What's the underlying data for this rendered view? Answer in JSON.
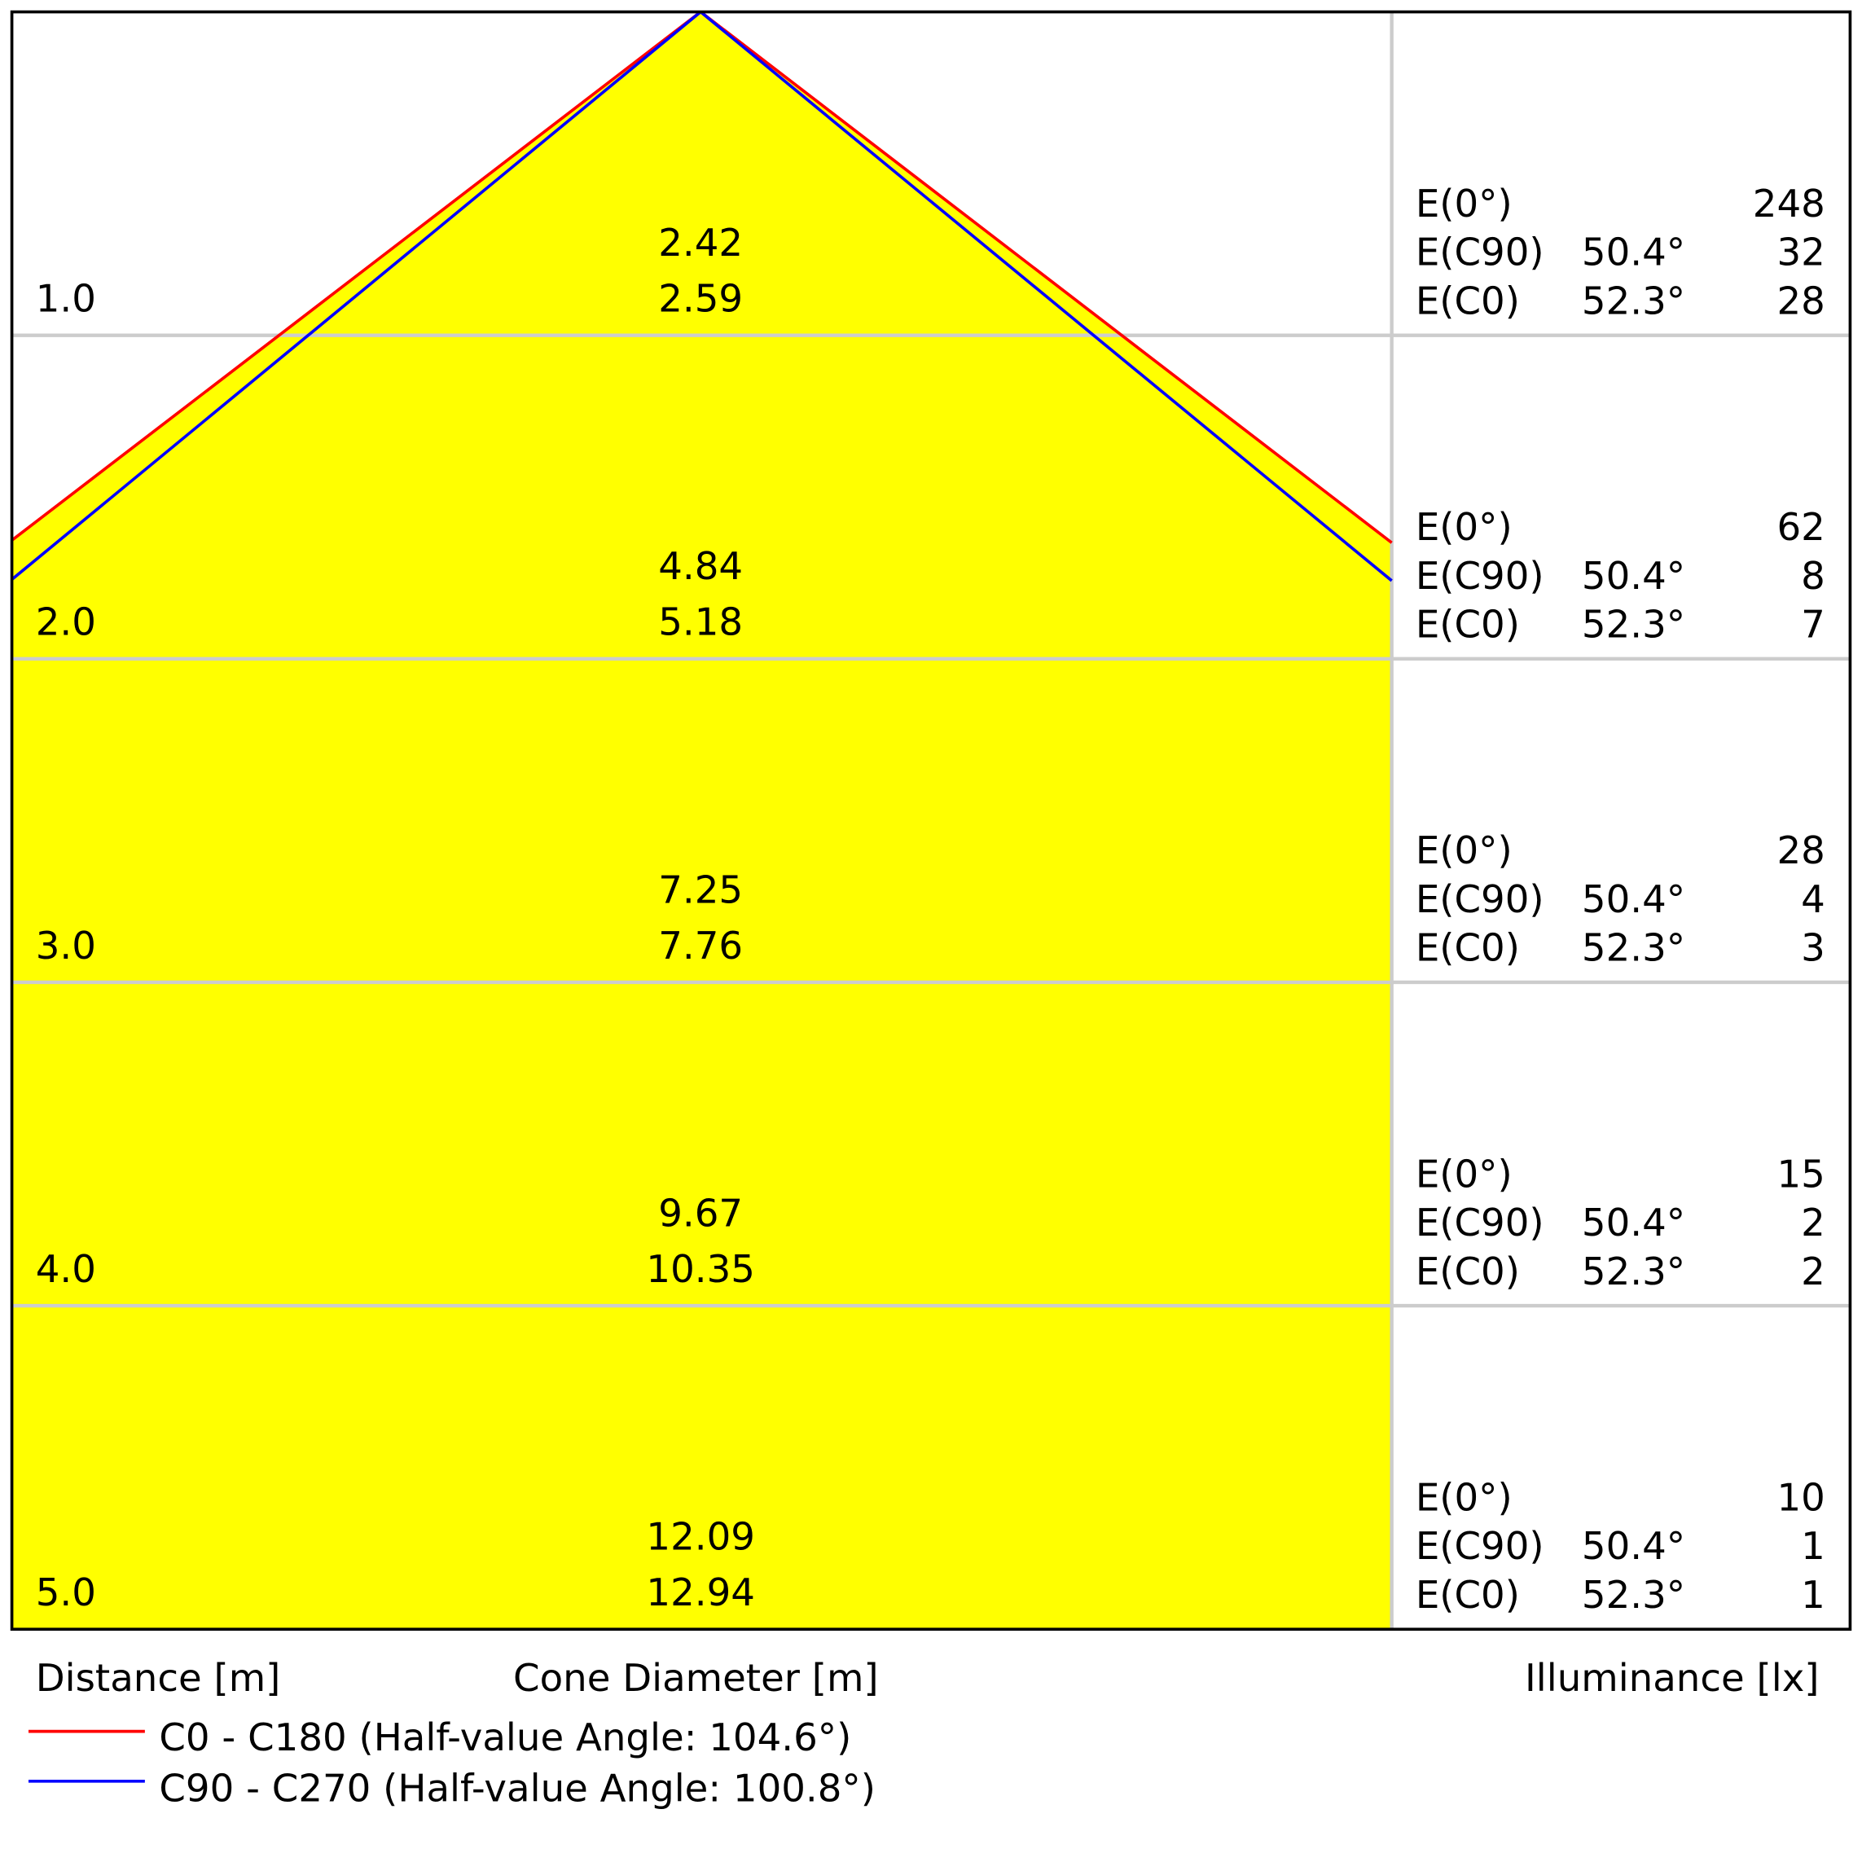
{
  "chart_data": {
    "type": "table",
    "xlabel": "Cone Diameter [m]",
    "ylabel": "Distance [m]",
    "right_label": "Illuminance [lx]",
    "colors": {
      "c0": "#ff0000",
      "c90": "#0000ff",
      "cone_fill": "#ffff00",
      "grid": "#cccccc"
    },
    "legend": [
      {
        "name": "C0 - C180 (Half-value Angle: 104.6°)",
        "color": "#ff0000",
        "half_angle": 104.6
      },
      {
        "name": "C90 - C270 (Half-value Angle: 100.8°)",
        "color": "#0000ff",
        "half_angle": 100.8
      }
    ],
    "labels": {
      "e0": "E(0°)",
      "ec90": "E(C90)",
      "ec0": "E(C0)",
      "angle_c90": "50.4°",
      "angle_c0": "52.3°"
    },
    "rows": [
      {
        "distance": "1.0",
        "diam_c90": "2.42",
        "diam_c0": "2.59",
        "e0": "248",
        "ec90": "32",
        "ec0": "28"
      },
      {
        "distance": "2.0",
        "diam_c90": "4.84",
        "diam_c0": "5.18",
        "e0": "62",
        "ec90": "8",
        "ec0": "7"
      },
      {
        "distance": "3.0",
        "diam_c90": "7.25",
        "diam_c0": "7.76",
        "e0": "28",
        "ec90": "4",
        "ec0": "3"
      },
      {
        "distance": "4.0",
        "diam_c90": "9.67",
        "diam_c0": "10.35",
        "e0": "15",
        "ec90": "2",
        "ec0": "2"
      },
      {
        "distance": "5.0",
        "diam_c90": "12.09",
        "diam_c0": "12.94",
        "e0": "10",
        "ec90": "1",
        "ec0": "1"
      }
    ]
  }
}
